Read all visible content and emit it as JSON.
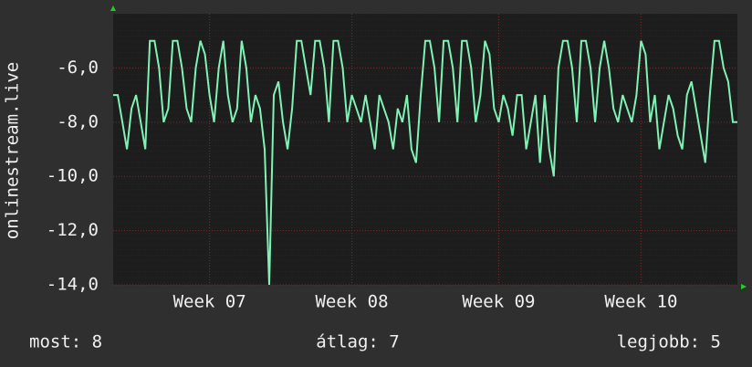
{
  "chart_data": {
    "type": "line",
    "ylabel": "onlinestream.live",
    "values": [
      -7,
      -7,
      -8,
      -9,
      -7.5,
      -7,
      -8,
      -9,
      -5,
      -5,
      -6,
      -8,
      -7.5,
      -5,
      -5,
      -6,
      -7.5,
      -8,
      -6,
      -5,
      -5.5,
      -7,
      -8,
      -6,
      -5,
      -7,
      -8,
      -7.5,
      -5,
      -6,
      -8,
      -7,
      -7.5,
      -9,
      -14,
      -7,
      -6.5,
      -8,
      -9,
      -7.5,
      -5,
      -5,
      -6,
      -7,
      -5,
      -5,
      -6,
      -8,
      -5,
      -5,
      -6,
      -8,
      -7,
      -7.5,
      -8,
      -7,
      -8,
      -9,
      -7,
      -7.5,
      -8,
      -9,
      -7.5,
      -8,
      -7,
      -9,
      -9.5,
      -7,
      -5,
      -5,
      -6,
      -8,
      -5,
      -5,
      -6,
      -8,
      -5,
      -5,
      -6,
      -8,
      -7,
      -5,
      -5.5,
      -7.5,
      -8,
      -7,
      -7.5,
      -8.5,
      -7,
      -7,
      -9,
      -8,
      -7,
      -9.5,
      -7,
      -9,
      -10,
      -6,
      -5,
      -5,
      -6,
      -8,
      -5,
      -5,
      -6,
      -8,
      -6,
      -5,
      -6,
      -7.5,
      -8,
      -7,
      -7.5,
      -8,
      -7,
      -5,
      -5.5,
      -8,
      -7,
      -9,
      -8,
      -7,
      -7.5,
      -8.5,
      -9,
      -7,
      -6.5,
      -7.5,
      -8.5,
      -9.5,
      -7,
      -5,
      -5,
      -6,
      -6.5,
      -8,
      -8
    ],
    "color": "#7ff2b5",
    "xlim": [
      0,
      136
    ],
    "xticks": [
      {
        "value": 21,
        "label": "Week 07"
      },
      {
        "value": 52,
        "label": "Week 08"
      },
      {
        "value": 84,
        "label": "Week 09"
      },
      {
        "value": 115,
        "label": "Week 10"
      }
    ],
    "ylim": [
      -14,
      -4
    ],
    "yticks": [
      {
        "value": -14,
        "label": "-14,0"
      },
      {
        "value": -12,
        "label": "-12,0"
      },
      {
        "value": -10,
        "label": "-10,0"
      },
      {
        "value": -8,
        "label": "-8,0"
      },
      {
        "value": -6,
        "label": "-6,0"
      }
    ],
    "grid": true,
    "footer": [
      "most: 8",
      "átlag: 7",
      "legjobb: 5"
    ]
  }
}
